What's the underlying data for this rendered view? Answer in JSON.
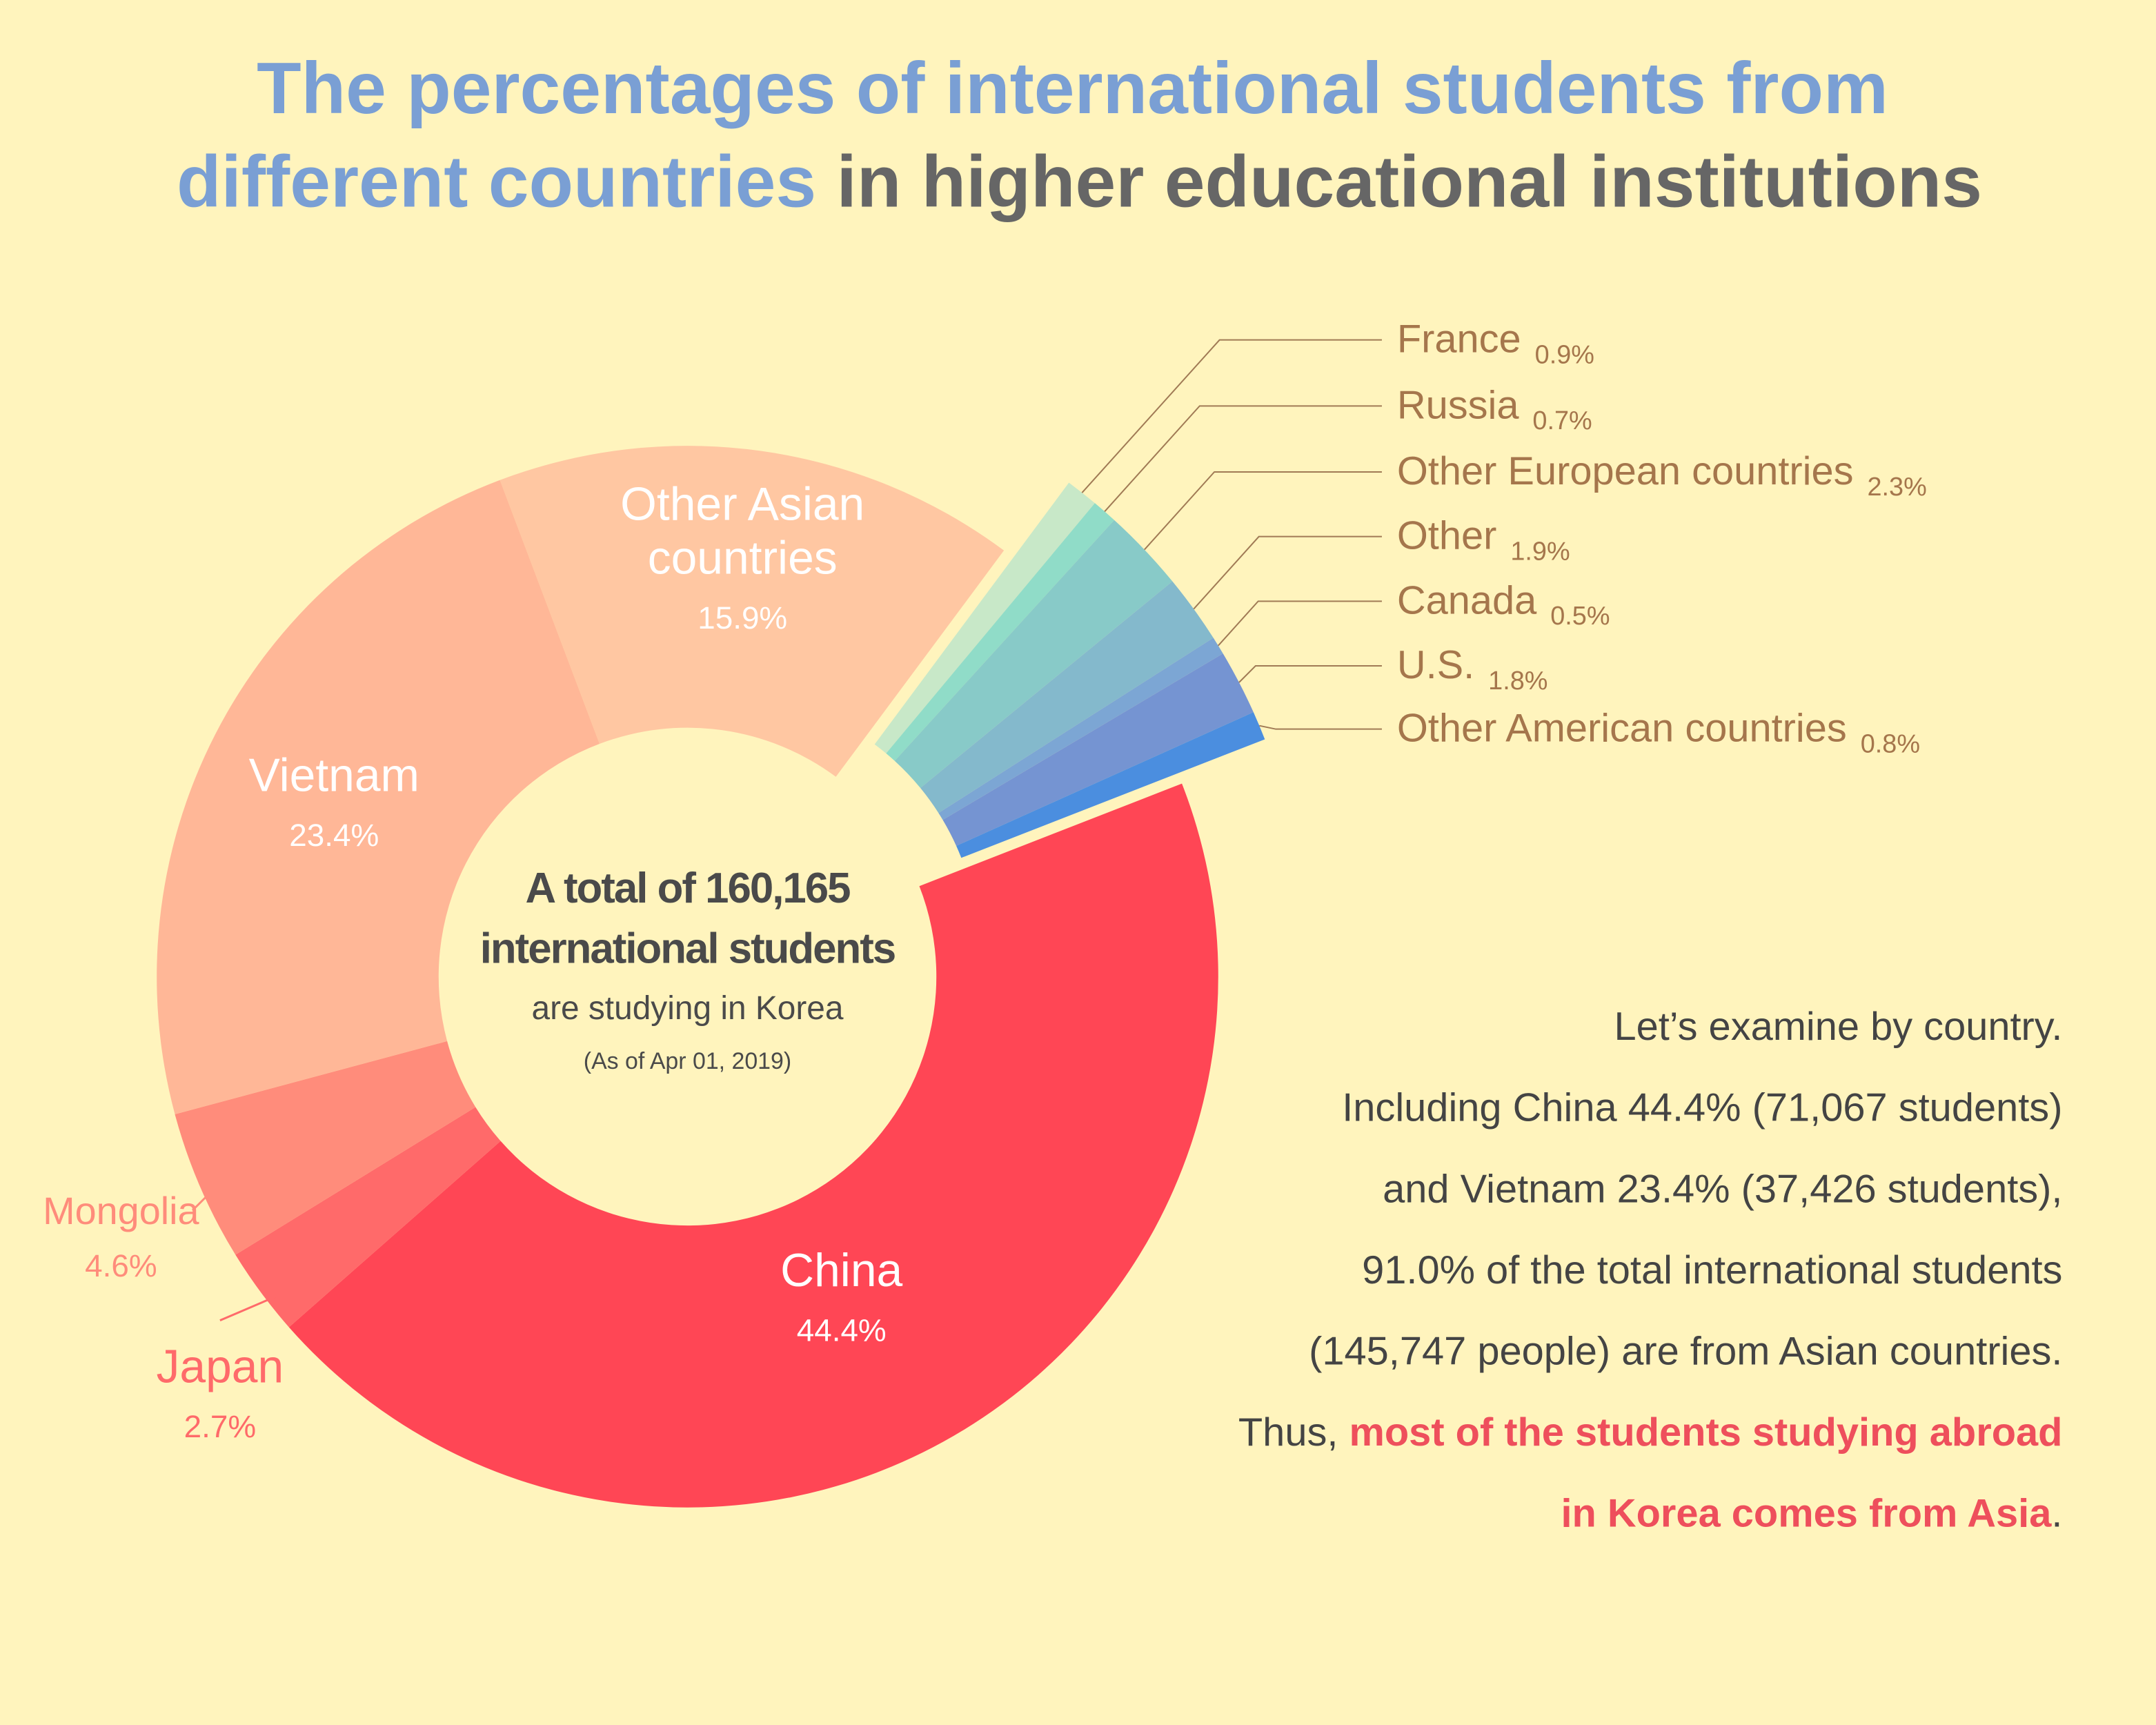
{
  "title_parts": [
    "The percentages of international students from",
    "different countries",
    "in higher educational institutions"
  ],
  "chart_data": {
    "type": "pie",
    "categories": [
      "Other Asian countries",
      "France",
      "Russia",
      "Other European countries",
      "Other",
      "Canada",
      "U.S.",
      "Other American countries",
      "China",
      "Japan",
      "Mongolia",
      "Vietnam"
    ],
    "values": [
      15.9,
      0.9,
      0.7,
      2.3,
      1.9,
      0.5,
      1.8,
      0.8,
      44.4,
      2.7,
      4.6,
      23.4
    ],
    "value_labels": [
      "15.9%",
      "0.9%",
      "0.7%",
      "2.3%",
      "1.9%",
      "0.5%",
      "1.8%",
      "0.8%",
      "44.4%",
      "2.7%",
      "4.6%",
      "23.4%"
    ],
    "colors": [
      "#ffc7a2",
      "#c8e8c8",
      "#90dcc8",
      "#88cac8",
      "#84b9cc",
      "#7ca6d4",
      "#7594d2",
      "#4b8edf",
      "#ff4655",
      "#ff6a6a",
      "#ff8c7b",
      "#ffb797"
    ]
  },
  "center_text": [
    "A total of 160,165",
    "international students",
    "are studying in Korea",
    "(As of Apr 01, 2019)"
  ],
  "note": {
    "lines": [
      "Let’s examine by country.",
      "Including China 44.4% (71,067 students)",
      "and Vietnam 23.4% (37,426 students),",
      "91.0% of the total international students",
      "(145,747 people) are from Asian countries."
    ],
    "closing": [
      "Thus,",
      "most of the students studying abroad",
      "in Korea comes from Asia",
      "."
    ]
  }
}
